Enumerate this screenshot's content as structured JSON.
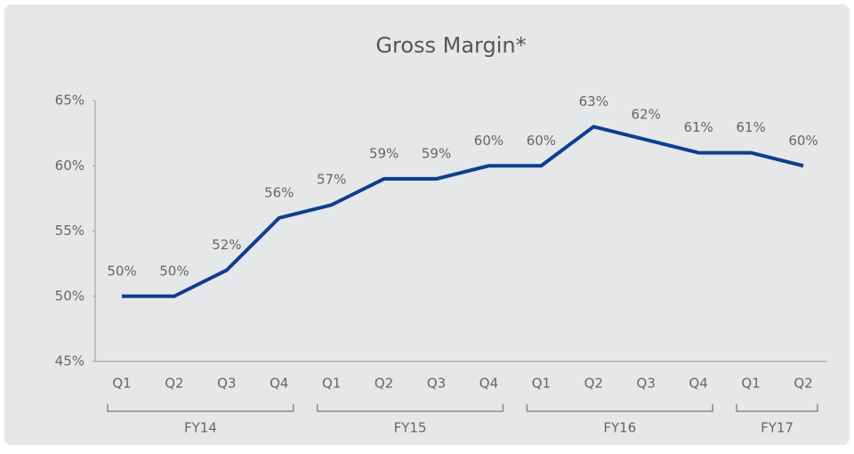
{
  "chart_data": {
    "type": "line",
    "title": "Gross Margin*",
    "category_groups": [
      {
        "name": "FY14",
        "categories": [
          "Q1",
          "Q2",
          "Q3",
          "Q4"
        ]
      },
      {
        "name": "FY15",
        "categories": [
          "Q1",
          "Q2",
          "Q3",
          "Q4"
        ]
      },
      {
        "name": "FY16",
        "categories": [
          "Q1",
          "Q2",
          "Q3",
          "Q4"
        ]
      },
      {
        "name": "FY17",
        "categories": [
          "Q1",
          "Q2"
        ]
      }
    ],
    "values": [
      50,
      50,
      52,
      56,
      57,
      59,
      59,
      60,
      60,
      63,
      62,
      61,
      61,
      60
    ],
    "value_labels": [
      "50%",
      "50%",
      "52%",
      "56%",
      "57%",
      "59%",
      "59%",
      "60%",
      "60%",
      "63%",
      "62%",
      "61%",
      "61%",
      "60%"
    ],
    "color": "#0b3f8f",
    "ylim": [
      45,
      65
    ],
    "yticks": [
      {
        "value": 45,
        "label": "45%"
      },
      {
        "value": 50,
        "label": "50%"
      },
      {
        "value": 55,
        "label": "55%"
      },
      {
        "value": 60,
        "label": "60%"
      },
      {
        "value": 65,
        "label": "65%"
      }
    ],
    "grid": false
  }
}
